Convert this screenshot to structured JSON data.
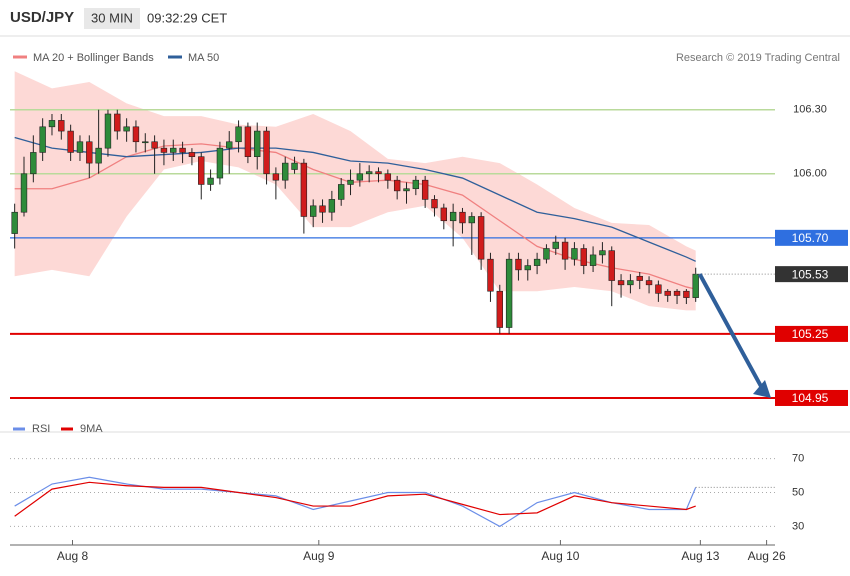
{
  "header": {
    "symbol": "USD/JPY",
    "interval": "30 MIN",
    "time": "09:32:29 CET"
  },
  "credit": "Research © 2019 Trading Central",
  "chart_data": [
    {
      "type": "candlestick",
      "xlim": [
        -0.5,
        81.5
      ],
      "ylim": [
        104.8,
        106.65
      ],
      "yticks": [
        {
          "value": 106.3,
          "label": "106.30"
        },
        {
          "value": 106.0,
          "label": "106.00"
        }
      ],
      "grid": true,
      "grid_color": "#b9da9b",
      "up_color": "#2e8b3a",
      "down_color": "#d01c1c",
      "open": [
        105.72,
        105.82,
        106.0,
        106.1,
        106.22,
        106.25,
        106.2,
        106.1,
        106.15,
        106.05,
        106.12,
        106.28,
        106.2,
        106.22,
        106.15,
        106.15,
        106.12,
        106.1,
        106.12,
        106.1,
        106.08,
        105.95,
        105.98,
        106.12,
        106.15,
        106.22,
        106.08,
        106.2,
        106.0,
        105.97,
        106.02,
        106.05,
        105.8,
        105.85,
        105.82,
        105.88,
        105.95,
        105.97,
        106.0,
        106.01,
        106.0,
        105.97,
        105.92,
        105.93,
        105.97,
        105.88,
        105.84,
        105.78,
        105.82,
        105.77,
        105.8,
        105.6,
        105.45,
        105.28,
        105.6,
        105.55,
        105.57,
        105.6,
        105.65,
        105.68,
        105.6,
        105.65,
        105.57,
        105.62,
        105.64,
        105.5,
        105.48,
        105.52,
        105.5,
        105.48,
        105.45,
        105.45,
        105.45,
        105.42
      ],
      "high": [
        105.86,
        106.08,
        106.18,
        106.26,
        106.28,
        106.28,
        106.23,
        106.18,
        106.18,
        106.3,
        106.3,
        106.3,
        106.26,
        106.25,
        106.19,
        106.18,
        106.16,
        106.16,
        106.15,
        106.12,
        106.1,
        106.02,
        106.15,
        106.2,
        106.25,
        106.24,
        106.24,
        106.22,
        106.03,
        106.08,
        106.08,
        106.07,
        105.88,
        105.88,
        105.92,
        105.98,
        106.02,
        106.05,
        106.04,
        106.03,
        106.02,
        105.99,
        105.96,
        105.99,
        105.99,
        105.9,
        105.86,
        105.86,
        105.84,
        105.82,
        105.82,
        105.63,
        105.48,
        105.63,
        105.63,
        105.6,
        105.63,
        105.67,
        105.71,
        105.7,
        105.68,
        105.67,
        105.66,
        105.68,
        105.66,
        105.53,
        105.53,
        105.54,
        105.52,
        105.5,
        105.46,
        105.46,
        105.46,
        105.56
      ],
      "low": [
        105.65,
        105.8,
        105.96,
        106.06,
        106.18,
        106.16,
        106.06,
        106.06,
        105.98,
        106.0,
        106.08,
        106.16,
        106.15,
        106.1,
        106.1,
        106.0,
        106.04,
        106.06,
        106.05,
        106.04,
        105.88,
        105.92,
        105.95,
        106.0,
        106.1,
        106.05,
        106.02,
        105.95,
        105.88,
        105.93,
        106.0,
        105.72,
        105.75,
        105.77,
        105.78,
        105.85,
        105.9,
        105.94,
        105.96,
        105.96,
        105.93,
        105.88,
        105.86,
        105.9,
        105.84,
        105.8,
        105.74,
        105.66,
        105.72,
        105.62,
        105.55,
        105.4,
        105.25,
        105.25,
        105.5,
        105.5,
        105.53,
        105.58,
        105.62,
        105.55,
        105.57,
        105.53,
        105.54,
        105.58,
        105.38,
        105.42,
        105.44,
        105.46,
        105.44,
        105.4,
        105.4,
        105.39,
        105.39,
        105.4
      ],
      "close": [
        105.82,
        106.0,
        106.1,
        106.22,
        106.25,
        106.2,
        106.1,
        106.15,
        106.05,
        106.12,
        106.28,
        106.2,
        106.22,
        106.15,
        106.15,
        106.12,
        106.1,
        106.12,
        106.1,
        106.08,
        105.95,
        105.98,
        106.12,
        106.15,
        106.22,
        106.08,
        106.2,
        106.0,
        105.97,
        106.05,
        106.05,
        105.8,
        105.85,
        105.82,
        105.88,
        105.95,
        105.97,
        106.0,
        106.01,
        106.0,
        105.97,
        105.92,
        105.93,
        105.97,
        105.88,
        105.84,
        105.78,
        105.82,
        105.77,
        105.8,
        105.6,
        105.45,
        105.28,
        105.6,
        105.55,
        105.57,
        105.6,
        105.65,
        105.68,
        105.6,
        105.65,
        105.57,
        105.62,
        105.64,
        105.5,
        105.48,
        105.5,
        105.5,
        105.48,
        105.44,
        105.43,
        105.43,
        105.42,
        105.53
      ],
      "line_x": [
        0,
        4,
        8,
        12,
        16,
        20,
        24,
        28,
        32,
        36,
        40,
        44,
        48,
        52,
        56,
        60,
        64,
        68,
        72,
        73
      ],
      "series": [
        {
          "name": "MA 20 + Bollinger Bands",
          "color": "#f08080",
          "band_color": "#fdd9d6",
          "values": [
            105.93,
            105.93,
            105.98,
            106.08,
            106.13,
            106.14,
            106.12,
            106.1,
            106.02,
            105.96,
            105.97,
            105.95,
            105.9,
            105.78,
            105.66,
            105.6,
            105.56,
            105.53,
            105.47,
            105.46
          ],
          "upper": [
            106.48,
            106.4,
            106.43,
            106.33,
            106.27,
            106.27,
            106.23,
            106.22,
            106.28,
            106.2,
            106.07,
            106.05,
            106.08,
            106.05,
            105.95,
            105.84,
            105.77,
            105.76,
            105.66,
            105.64
          ],
          "lower": [
            105.52,
            105.55,
            105.52,
            105.8,
            106.02,
            106.06,
            106.03,
            105.95,
            105.75,
            105.75,
            105.82,
            105.85,
            105.7,
            105.45,
            105.45,
            105.47,
            105.45,
            105.38,
            105.36,
            105.36
          ]
        },
        {
          "name": "MA 50",
          "color": "#2f5f9a",
          "values": [
            106.17,
            106.12,
            106.1,
            106.08,
            106.09,
            106.1,
            106.12,
            106.12,
            106.1,
            106.06,
            106.05,
            106.02,
            105.98,
            105.9,
            105.82,
            105.79,
            105.75,
            105.68,
            105.61,
            105.59
          ]
        }
      ],
      "levels": [
        {
          "value": 105.7,
          "label": "105.70",
          "color": "#2f6fe0"
        },
        {
          "value": 105.25,
          "label": "105.25",
          "color": "#e00000"
        },
        {
          "value": 104.95,
          "label": "104.95",
          "color": "#e00000"
        }
      ],
      "last": {
        "value": 105.53,
        "label": "105.53",
        "color": "#333333"
      },
      "arrow_color": "#2f5f9a"
    },
    {
      "type": "line",
      "xlim": [
        -0.5,
        81.5
      ],
      "ylim": [
        22,
        78
      ],
      "yticks": [
        70,
        50,
        30
      ],
      "grid": true,
      "x": [
        0,
        4,
        8,
        12,
        16,
        20,
        24,
        28,
        32,
        36,
        40,
        44,
        48,
        52,
        56,
        60,
        64,
        68,
        72,
        73
      ],
      "xticks": [
        {
          "value": 6.2,
          "label": "Aug 8"
        },
        {
          "value": 32.6,
          "label": "Aug 9"
        },
        {
          "value": 58.5,
          "label": "Aug 10"
        },
        {
          "value": 73.5,
          "label": "Aug 13"
        },
        {
          "value": 80.6,
          "label": "Aug 26"
        }
      ],
      "series": [
        {
          "name": "RSI",
          "color": "#6b8ee8",
          "values": [
            42,
            55,
            59,
            55,
            52,
            52,
            50,
            48,
            40,
            45,
            50,
            50,
            42,
            30,
            44,
            50,
            44,
            40,
            40,
            53
          ]
        },
        {
          "name": "9MA",
          "color": "#e00000",
          "values": [
            36,
            52,
            56,
            54,
            53,
            53,
            50,
            47,
            42,
            42,
            48,
            49,
            43,
            37,
            38,
            48,
            44,
            42,
            40,
            42
          ]
        }
      ]
    }
  ]
}
